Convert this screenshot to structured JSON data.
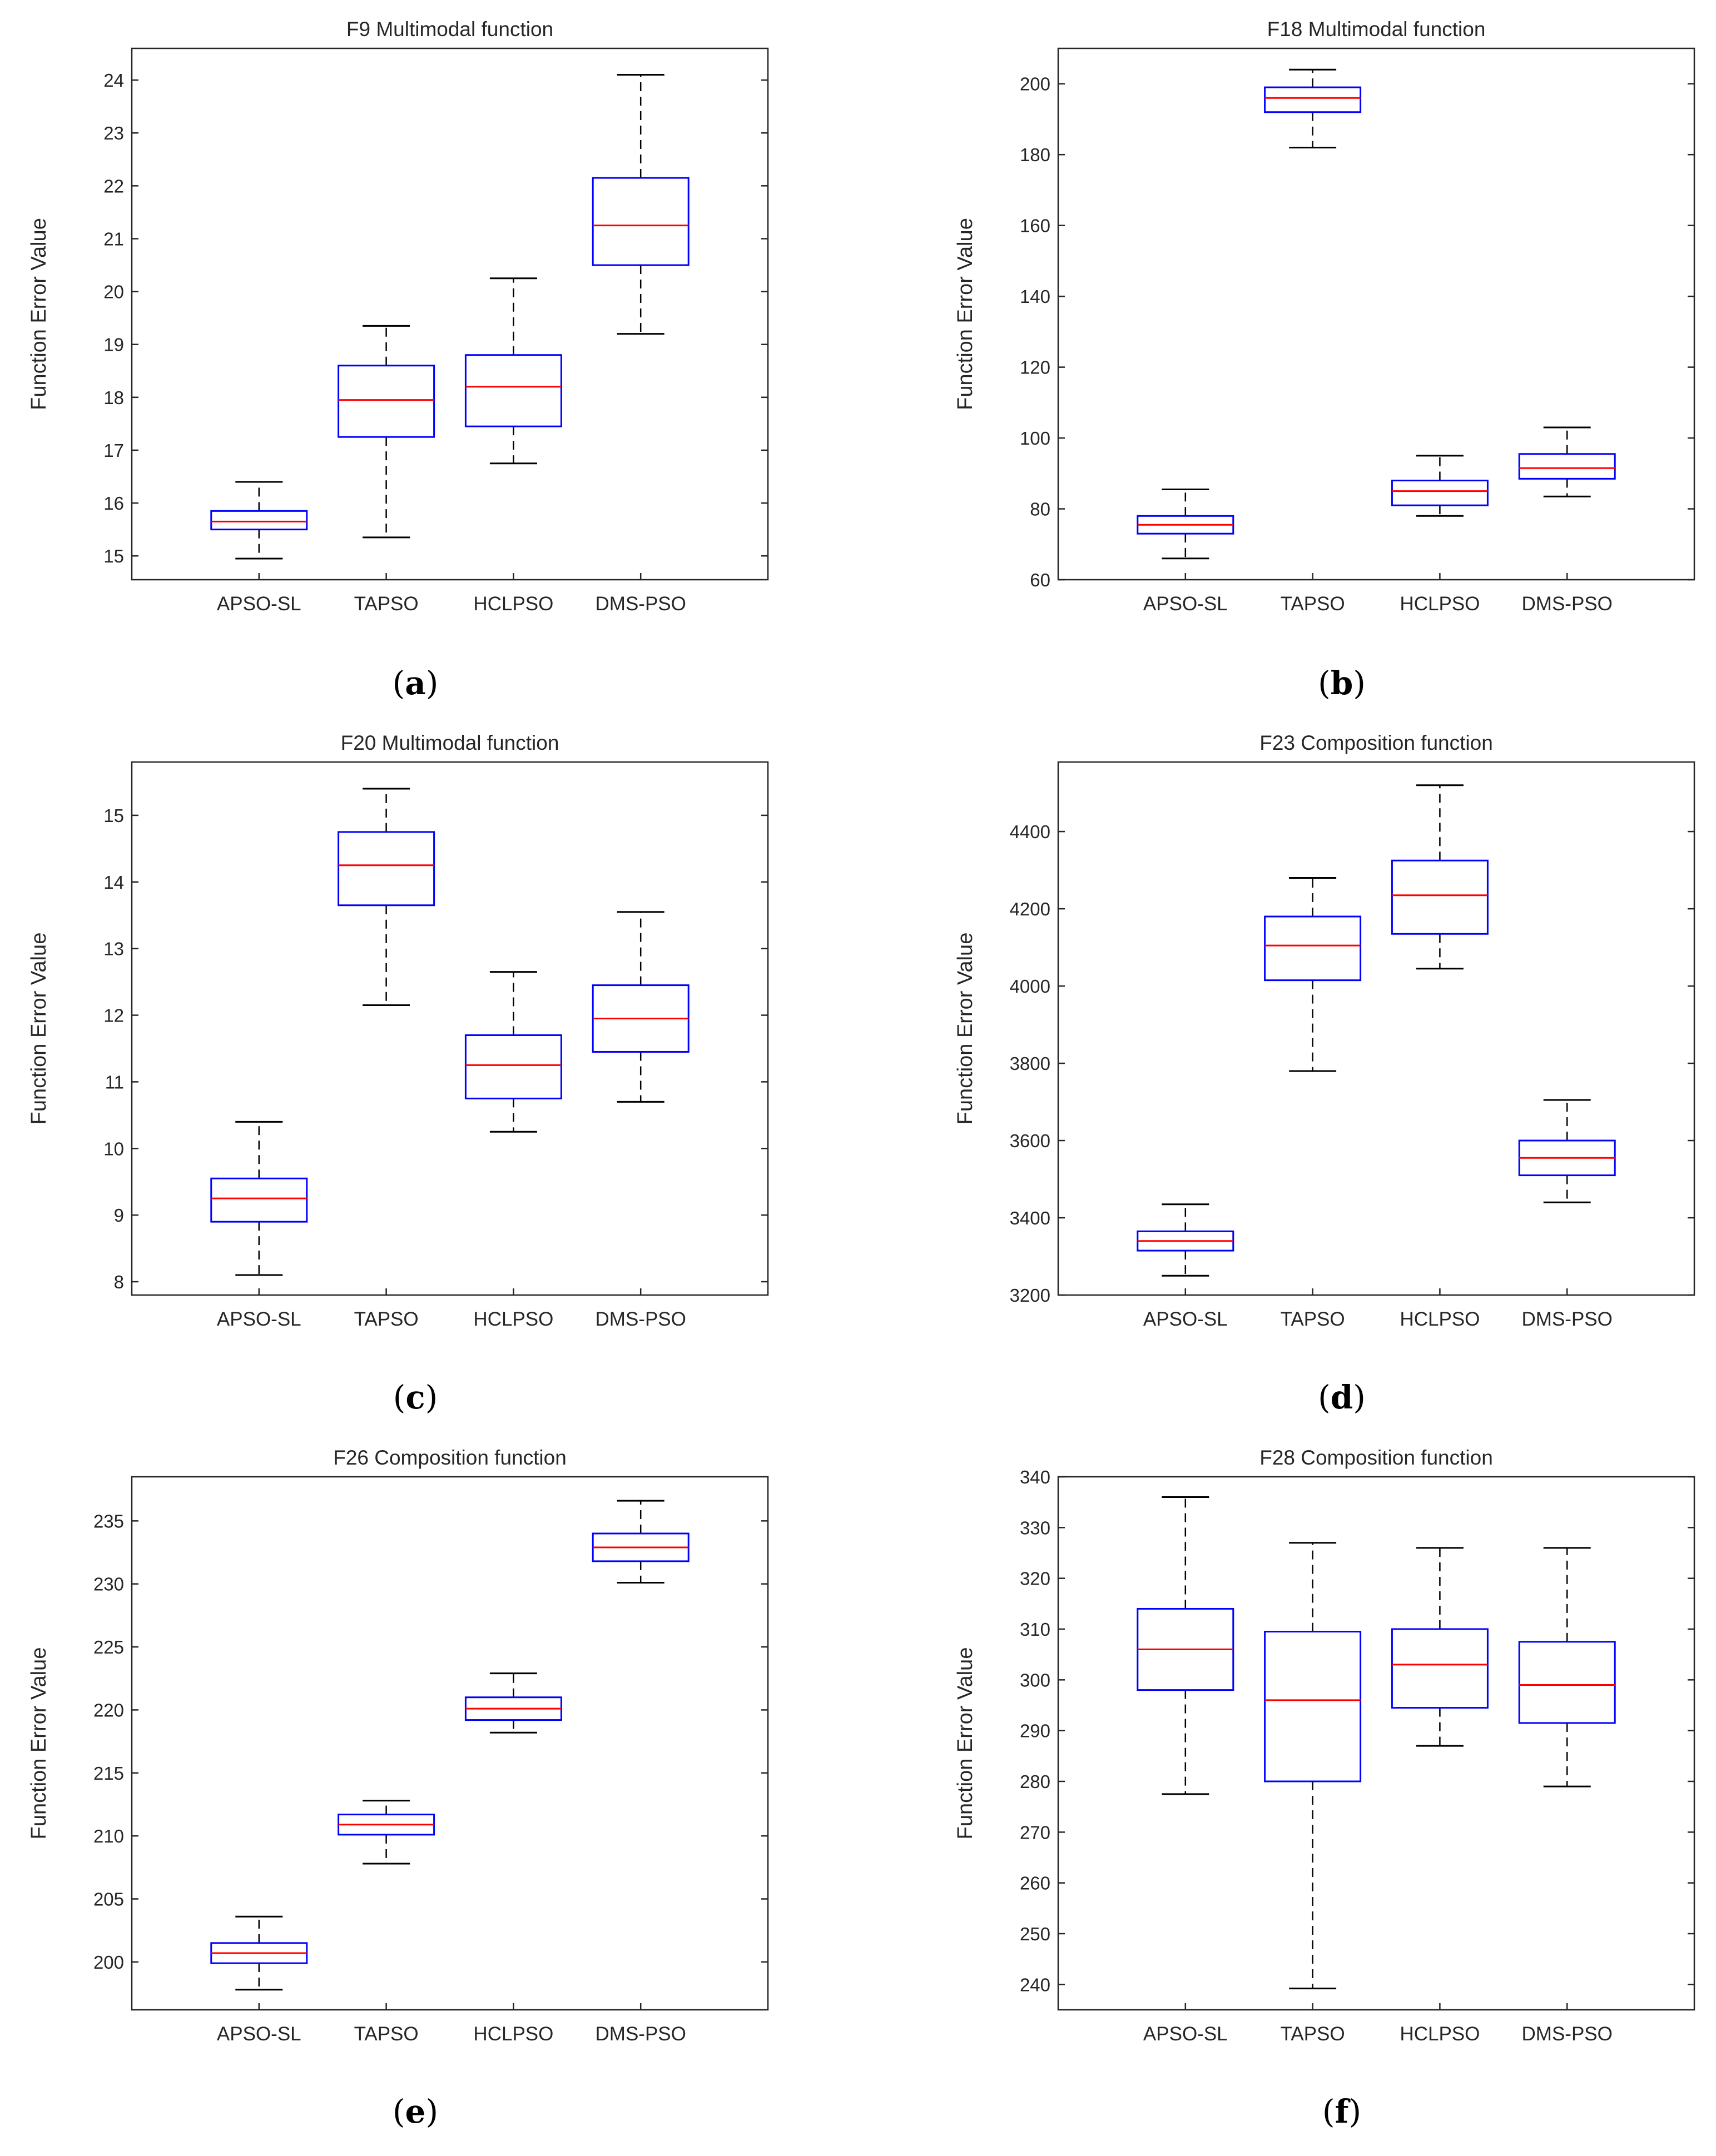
{
  "figure": {
    "captions": [
      "(a)",
      "(b)",
      "(c)",
      "(d)",
      "(e)",
      "(f)"
    ],
    "caption_letters": [
      "a",
      "b",
      "c",
      "d",
      "e",
      "f"
    ]
  },
  "colors": {
    "box": "#0000ff",
    "median": "#ff0000",
    "whisker": "#000000",
    "axes": "#262626",
    "text": "#262626"
  },
  "chart_data": [
    {
      "type": "box",
      "title": "F9 Multimodal function",
      "ylabel": "Function Error Value",
      "categories": [
        "APSO-SL",
        "TAPSO",
        "HCLPSO",
        "DMS-PSO"
      ],
      "ylim": [
        14.55,
        24.6
      ],
      "yticks": [
        15,
        16,
        17,
        18,
        19,
        20,
        21,
        22,
        23,
        24
      ],
      "boxes": [
        {
          "lower_whisker": 14.95,
          "q1": 15.5,
          "median": 15.65,
          "q3": 15.85,
          "upper_whisker": 16.4
        },
        {
          "lower_whisker": 15.35,
          "q1": 17.25,
          "median": 17.95,
          "q3": 18.6,
          "upper_whisker": 19.35
        },
        {
          "lower_whisker": 16.75,
          "q1": 17.45,
          "median": 18.2,
          "q3": 18.8,
          "upper_whisker": 20.25
        },
        {
          "lower_whisker": 19.2,
          "q1": 20.5,
          "median": 21.25,
          "q3": 22.15,
          "upper_whisker": 24.1
        }
      ]
    },
    {
      "type": "box",
      "title": "F18 Multimodal function",
      "ylabel": "Function Error Value",
      "categories": [
        "APSO-SL",
        "TAPSO",
        "HCLPSO",
        "DMS-PSO"
      ],
      "ylim": [
        60,
        210
      ],
      "yticks": [
        60,
        80,
        100,
        120,
        140,
        160,
        180,
        200
      ],
      "boxes": [
        {
          "lower_whisker": 66,
          "q1": 73,
          "median": 75.5,
          "q3": 78,
          "upper_whisker": 85.5
        },
        {
          "lower_whisker": 182,
          "q1": 192,
          "median": 196,
          "q3": 199,
          "upper_whisker": 204
        },
        {
          "lower_whisker": 78,
          "q1": 81,
          "median": 85,
          "q3": 88,
          "upper_whisker": 95
        },
        {
          "lower_whisker": 83.5,
          "q1": 88.5,
          "median": 91.5,
          "q3": 95.5,
          "upper_whisker": 103
        }
      ]
    },
    {
      "type": "box",
      "title": "F20 Multimodal function",
      "ylabel": "Function Error Value",
      "categories": [
        "APSO-SL",
        "TAPSO",
        "HCLPSO",
        "DMS-PSO"
      ],
      "ylim": [
        7.8,
        15.8
      ],
      "yticks": [
        8,
        9,
        10,
        11,
        12,
        13,
        14,
        15
      ],
      "boxes": [
        {
          "lower_whisker": 8.1,
          "q1": 8.9,
          "median": 9.25,
          "q3": 9.55,
          "upper_whisker": 10.4
        },
        {
          "lower_whisker": 12.15,
          "q1": 13.65,
          "median": 14.25,
          "q3": 14.75,
          "upper_whisker": 15.4
        },
        {
          "lower_whisker": 10.25,
          "q1": 10.75,
          "median": 11.25,
          "q3": 11.7,
          "upper_whisker": 12.65
        },
        {
          "lower_whisker": 10.7,
          "q1": 11.45,
          "median": 11.95,
          "q3": 12.45,
          "upper_whisker": 13.55
        }
      ]
    },
    {
      "type": "box",
      "title": "F23 Composition function",
      "ylabel": "Function Error Value",
      "categories": [
        "APSO-SL",
        "TAPSO",
        "HCLPSO",
        "DMS-PSO"
      ],
      "ylim": [
        3200,
        4580
      ],
      "yticks": [
        3200,
        3400,
        3600,
        3800,
        4000,
        4200,
        4400
      ],
      "boxes": [
        {
          "lower_whisker": 3250,
          "q1": 3315,
          "median": 3340,
          "q3": 3365,
          "upper_whisker": 3435
        },
        {
          "lower_whisker": 3780,
          "q1": 4015,
          "median": 4105,
          "q3": 4180,
          "upper_whisker": 4280
        },
        {
          "lower_whisker": 4045,
          "q1": 4135,
          "median": 4235,
          "q3": 4325,
          "upper_whisker": 4520
        },
        {
          "lower_whisker": 3440,
          "q1": 3510,
          "median": 3555,
          "q3": 3600,
          "upper_whisker": 3705
        }
      ]
    },
    {
      "type": "box",
      "title": "F26 Composition function",
      "ylabel": "Function Error Value",
      "categories": [
        "APSO-SL",
        "TAPSO",
        "HCLPSO",
        "DMS-PSO"
      ],
      "ylim": [
        196.2,
        238.5
      ],
      "yticks": [
        200,
        205,
        210,
        215,
        220,
        225,
        230,
        235
      ],
      "boxes": [
        {
          "lower_whisker": 197.8,
          "q1": 199.9,
          "median": 200.7,
          "q3": 201.5,
          "upper_whisker": 203.6
        },
        {
          "lower_whisker": 207.8,
          "q1": 210.1,
          "median": 210.9,
          "q3": 211.7,
          "upper_whisker": 212.8
        },
        {
          "lower_whisker": 218.2,
          "q1": 219.2,
          "median": 220.1,
          "q3": 221,
          "upper_whisker": 222.9
        },
        {
          "lower_whisker": 230.1,
          "q1": 231.8,
          "median": 232.9,
          "q3": 234,
          "upper_whisker": 236.6
        }
      ]
    },
    {
      "type": "box",
      "title": "F28 Composition function",
      "ylabel": "Function Error Value",
      "categories": [
        "APSO-SL",
        "TAPSO",
        "HCLPSO",
        "DMS-PSO"
      ],
      "ylim": [
        235,
        340
      ],
      "yticks": [
        240,
        250,
        260,
        270,
        280,
        290,
        300,
        310,
        320,
        330,
        340
      ],
      "boxes": [
        {
          "lower_whisker": 277.5,
          "q1": 298,
          "median": 306,
          "q3": 314,
          "upper_whisker": 336
        },
        {
          "lower_whisker": 239.2,
          "q1": 280,
          "median": 296,
          "q3": 309.5,
          "upper_whisker": 327
        },
        {
          "lower_whisker": 287,
          "q1": 294.5,
          "median": 303,
          "q3": 310,
          "upper_whisker": 326
        },
        {
          "lower_whisker": 279,
          "q1": 291.5,
          "median": 299,
          "q3": 307.5,
          "upper_whisker": 326
        }
      ]
    }
  ]
}
